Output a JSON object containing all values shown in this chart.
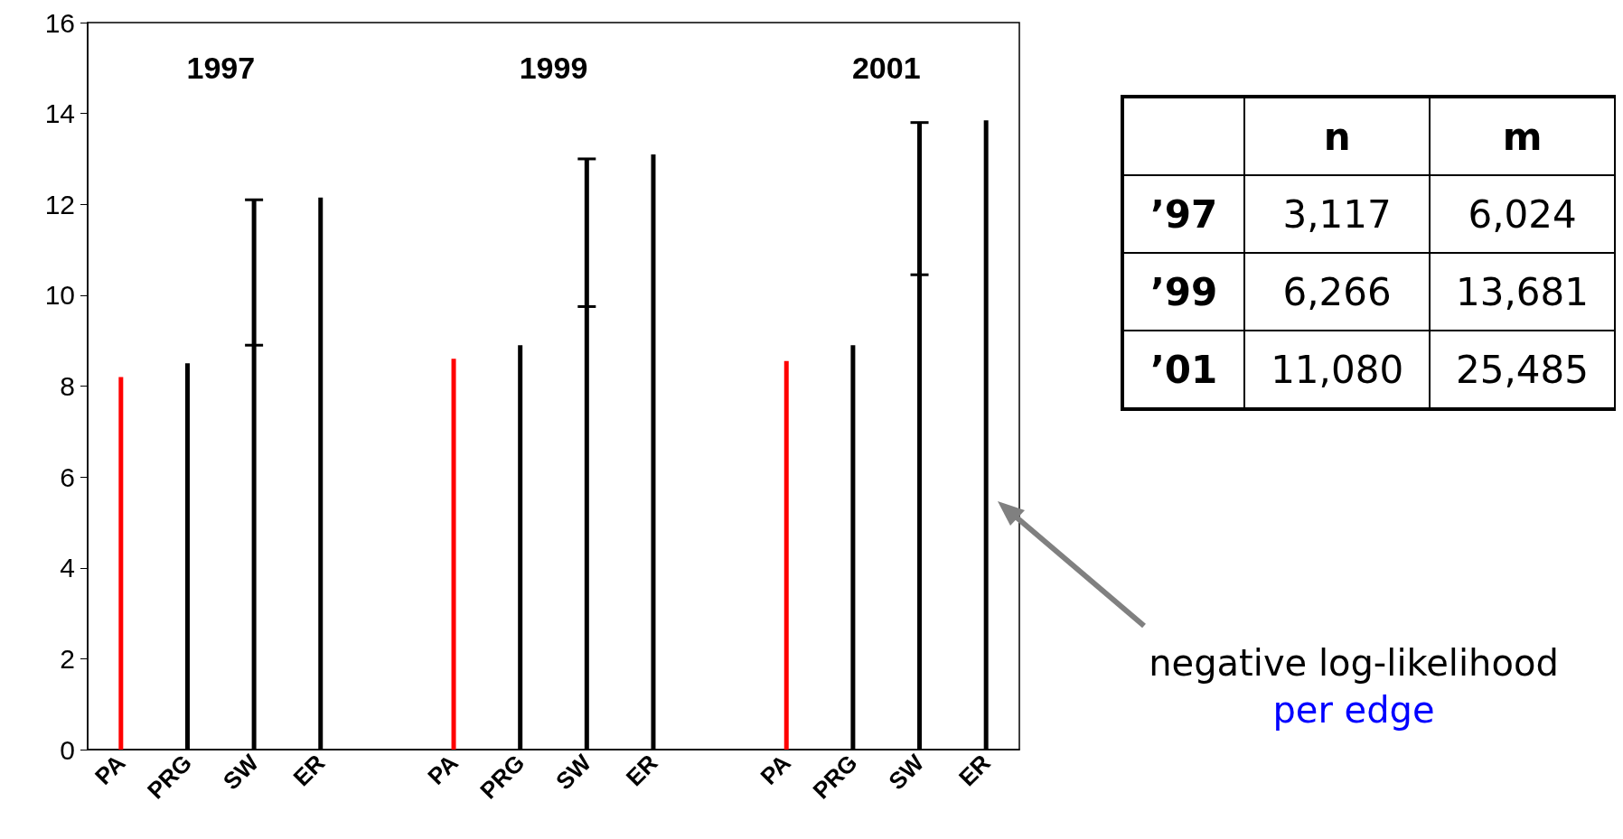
{
  "chart_data": [
    {
      "type": "bar",
      "categories": [
        "PA",
        "PRG",
        "SW",
        "ER",
        null,
        "PA",
        "PRG",
        "SW",
        "ER",
        null,
        "PA",
        "PRG",
        "SW",
        "ER"
      ],
      "values": [
        8.2,
        8.5,
        12.1,
        12.15,
        null,
        8.6,
        8.9,
        13.0,
        13.1,
        null,
        8.55,
        8.9,
        13.8,
        13.85
      ],
      "colors": [
        "#ff0000",
        "#000000",
        "#000000",
        "#000000",
        "#000000",
        "#ff0000",
        "#000000",
        "#000000",
        "#000000",
        "#000000",
        "#ff0000",
        "#000000",
        "#000000",
        "#000000"
      ],
      "errors": [
        null,
        null,
        [
          8.9,
          12.1
        ],
        null,
        null,
        null,
        null,
        [
          9.75,
          13.0
        ],
        null,
        null,
        null,
        null,
        [
          10.45,
          13.8
        ],
        null
      ],
      "ylim": [
        0,
        16
      ],
      "yticks": [
        0,
        2,
        4,
        6,
        8,
        10,
        12,
        14,
        16
      ],
      "grid": false,
      "annotations": [
        "1997",
        "1999",
        "2001",
        "negative log-likelihood",
        "per edge"
      ]
    },
    {
      "type": "other",
      "categories": [
        "n",
        "m"
      ],
      "y_categories": [
        "’97",
        "’99",
        "’01"
      ],
      "cell_labels": [
        [
          "3,117",
          "6,024"
        ],
        [
          "6,266",
          "13,681"
        ],
        [
          "11,080",
          "25,485"
        ]
      ]
    }
  ]
}
